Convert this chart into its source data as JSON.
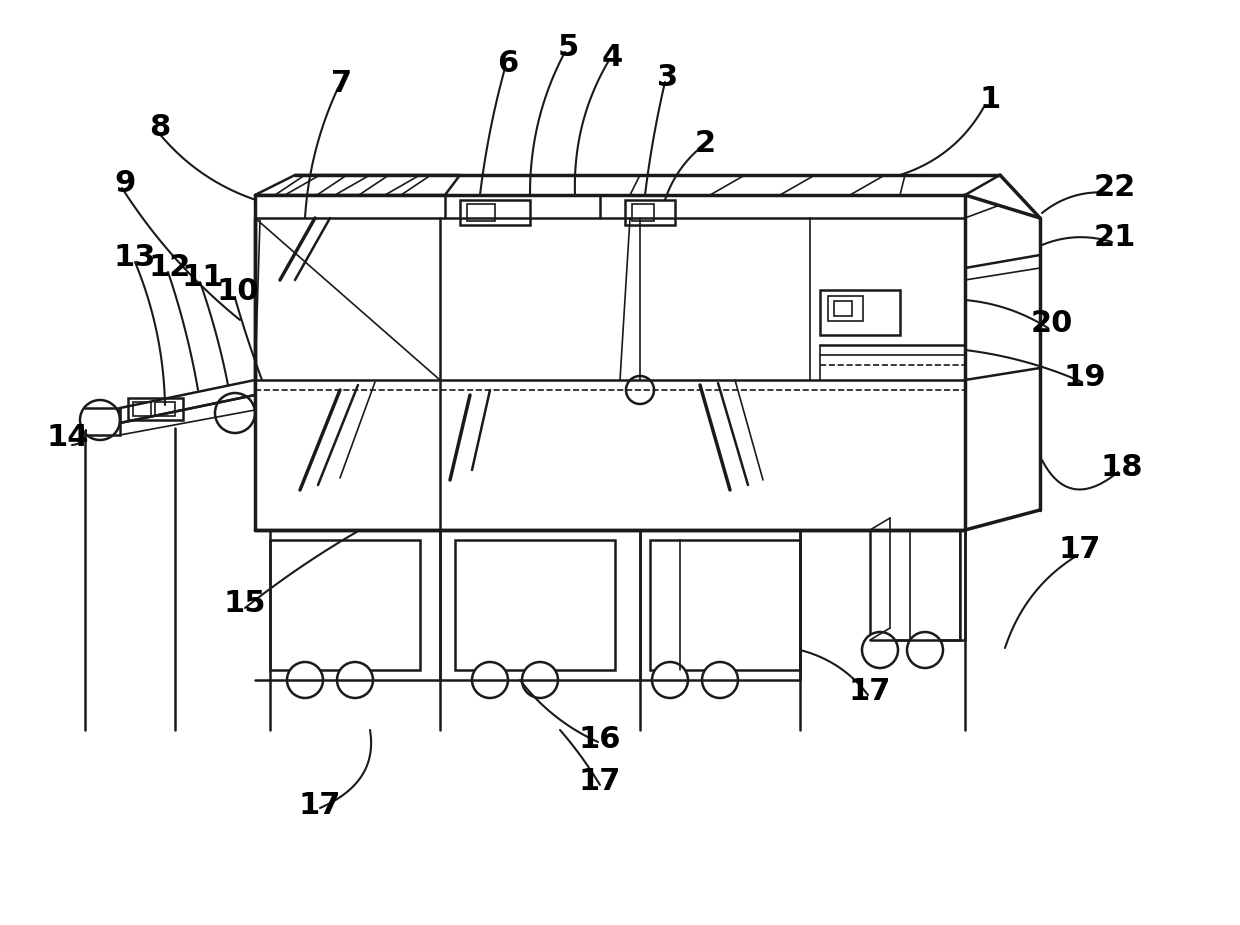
{
  "bg_color": "#ffffff",
  "line_color": "#1a1a1a",
  "label_color": "#000000",
  "label_fontsize": 22,
  "label_fontweight": "bold"
}
